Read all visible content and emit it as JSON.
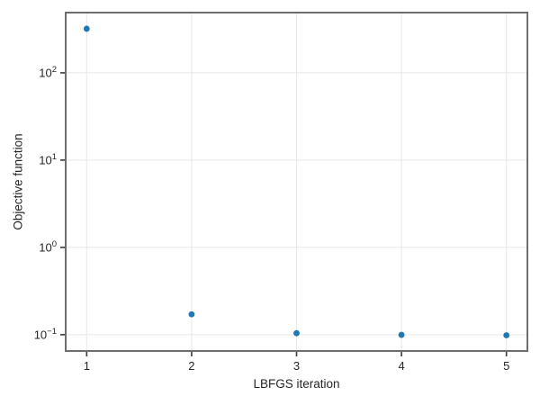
{
  "chart_data": {
    "type": "scatter",
    "title": "",
    "xlabel": "LBFGS iteration",
    "ylabel": "Objective function",
    "x": [
      1,
      2,
      3,
      4,
      5
    ],
    "y": [
      320,
      0.171,
      0.104,
      0.0995,
      0.0985
    ],
    "xlim": [
      0.8,
      5.2
    ],
    "ylim": [
      0.065,
      490
    ],
    "yscale": "log",
    "grid": true,
    "legend": null,
    "x_ticks": [
      {
        "value": 1,
        "label": "1"
      },
      {
        "value": 2,
        "label": "2"
      },
      {
        "value": 3,
        "label": "3"
      },
      {
        "value": 4,
        "label": "4"
      },
      {
        "value": 5,
        "label": "5"
      }
    ],
    "y_ticks": [
      {
        "value": 0.1,
        "base": "10",
        "exp": "−1"
      },
      {
        "value": 1,
        "base": "10",
        "exp": "0"
      },
      {
        "value": 10,
        "base": "10",
        "exp": "1"
      },
      {
        "value": 100,
        "base": "10",
        "exp": "2"
      }
    ],
    "colors": {
      "marker": "#1f77b4",
      "spine": "#6e6e6e",
      "tick": "#3a3a3a",
      "grid": "#e7e7e7",
      "text": "#262626",
      "background": "#ffffff"
    }
  }
}
